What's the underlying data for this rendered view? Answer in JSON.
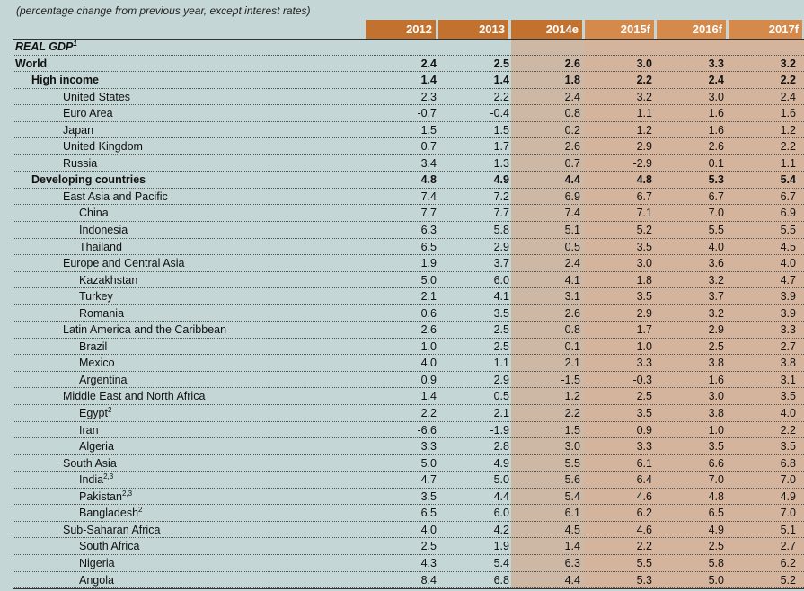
{
  "subtitle": "(percentage change from previous year, except interest rates)",
  "columns": [
    "2012",
    "2013",
    "2014e",
    "2015f",
    "2016f",
    "2017f"
  ],
  "colors": {
    "background": "#c5d6d6",
    "header_historical": "#c2712f",
    "header_forecast": "#d5894a",
    "shade_estimate": "#cdb8a6",
    "shade_forecast": "#d4b49c"
  },
  "section": {
    "label": "REAL GDP",
    "sup": "1"
  },
  "rows": [
    {
      "label": "World",
      "sup": "",
      "level": 0,
      "bold": true,
      "values": [
        "2.4",
        "2.5",
        "2.6",
        "3.0",
        "3.3",
        "3.2"
      ]
    },
    {
      "label": "High income",
      "sup": "",
      "level": 1,
      "bold": true,
      "values": [
        "1.4",
        "1.4",
        "1.8",
        "2.2",
        "2.4",
        "2.2"
      ]
    },
    {
      "label": "United States",
      "sup": "",
      "level": 2,
      "bold": false,
      "values": [
        "2.3",
        "2.2",
        "2.4",
        "3.2",
        "3.0",
        "2.4"
      ]
    },
    {
      "label": "Euro Area",
      "sup": "",
      "level": 2,
      "bold": false,
      "values": [
        "-0.7",
        "-0.4",
        "0.8",
        "1.1",
        "1.6",
        "1.6"
      ]
    },
    {
      "label": "Japan",
      "sup": "",
      "level": 2,
      "bold": false,
      "values": [
        "1.5",
        "1.5",
        "0.2",
        "1.2",
        "1.6",
        "1.2"
      ]
    },
    {
      "label": "United Kingdom",
      "sup": "",
      "level": 2,
      "bold": false,
      "values": [
        "0.7",
        "1.7",
        "2.6",
        "2.9",
        "2.6",
        "2.2"
      ]
    },
    {
      "label": "Russia",
      "sup": "",
      "level": 2,
      "bold": false,
      "values": [
        "3.4",
        "1.3",
        "0.7",
        "-2.9",
        "0.1",
        "1.1"
      ]
    },
    {
      "label": "Developing countries",
      "sup": "",
      "level": 1,
      "bold": true,
      "values": [
        "4.8",
        "4.9",
        "4.4",
        "4.8",
        "5.3",
        "5.4"
      ]
    },
    {
      "label": "East Asia and Pacific",
      "sup": "",
      "level": 2,
      "bold": false,
      "values": [
        "7.4",
        "7.2",
        "6.9",
        "6.7",
        "6.7",
        "6.7"
      ]
    },
    {
      "label": "China",
      "sup": "",
      "level": 3,
      "bold": false,
      "values": [
        "7.7",
        "7.7",
        "7.4",
        "7.1",
        "7.0",
        "6.9"
      ]
    },
    {
      "label": "Indonesia",
      "sup": "",
      "level": 3,
      "bold": false,
      "values": [
        "6.3",
        "5.8",
        "5.1",
        "5.2",
        "5.5",
        "5.5"
      ]
    },
    {
      "label": "Thailand",
      "sup": "",
      "level": 3,
      "bold": false,
      "values": [
        "6.5",
        "2.9",
        "0.5",
        "3.5",
        "4.0",
        "4.5"
      ]
    },
    {
      "label": "Europe and Central Asia",
      "sup": "",
      "level": 2,
      "bold": false,
      "values": [
        "1.9",
        "3.7",
        "2.4",
        "3.0",
        "3.6",
        "4.0"
      ]
    },
    {
      "label": "Kazakhstan",
      "sup": "",
      "level": 3,
      "bold": false,
      "values": [
        "5.0",
        "6.0",
        "4.1",
        "1.8",
        "3.2",
        "4.7"
      ]
    },
    {
      "label": "Turkey",
      "sup": "",
      "level": 3,
      "bold": false,
      "values": [
        "2.1",
        "4.1",
        "3.1",
        "3.5",
        "3.7",
        "3.9"
      ]
    },
    {
      "label": "Romania",
      "sup": "",
      "level": 3,
      "bold": false,
      "values": [
        "0.6",
        "3.5",
        "2.6",
        "2.9",
        "3.2",
        "3.9"
      ]
    },
    {
      "label": "Latin America and the Caribbean",
      "sup": "",
      "level": 2,
      "bold": false,
      "values": [
        "2.6",
        "2.5",
        "0.8",
        "1.7",
        "2.9",
        "3.3"
      ]
    },
    {
      "label": "Brazil",
      "sup": "",
      "level": 3,
      "bold": false,
      "values": [
        "1.0",
        "2.5",
        "0.1",
        "1.0",
        "2.5",
        "2.7"
      ]
    },
    {
      "label": "Mexico",
      "sup": "",
      "level": 3,
      "bold": false,
      "values": [
        "4.0",
        "1.1",
        "2.1",
        "3.3",
        "3.8",
        "3.8"
      ]
    },
    {
      "label": "Argentina",
      "sup": "",
      "level": 3,
      "bold": false,
      "values": [
        "0.9",
        "2.9",
        "-1.5",
        "-0.3",
        "1.6",
        "3.1"
      ]
    },
    {
      "label": "Middle East and North Africa",
      "sup": "",
      "level": 2,
      "bold": false,
      "values": [
        "1.4",
        "0.5",
        "1.2",
        "2.5",
        "3.0",
        "3.5"
      ]
    },
    {
      "label": "Egypt",
      "sup": "2",
      "level": 3,
      "bold": false,
      "values": [
        "2.2",
        "2.1",
        "2.2",
        "3.5",
        "3.8",
        "4.0"
      ]
    },
    {
      "label": "Iran",
      "sup": "",
      "level": 3,
      "bold": false,
      "values": [
        "-6.6",
        "-1.9",
        "1.5",
        "0.9",
        "1.0",
        "2.2"
      ]
    },
    {
      "label": "Algeria",
      "sup": "",
      "level": 3,
      "bold": false,
      "values": [
        "3.3",
        "2.8",
        "3.0",
        "3.3",
        "3.5",
        "3.5"
      ]
    },
    {
      "label": "South Asia",
      "sup": "",
      "level": 2,
      "bold": false,
      "values": [
        "5.0",
        "4.9",
        "5.5",
        "6.1",
        "6.6",
        "6.8"
      ]
    },
    {
      "label": "India",
      "sup": "2,3",
      "level": 3,
      "bold": false,
      "values": [
        "4.7",
        "5.0",
        "5.6",
        "6.4",
        "7.0",
        "7.0"
      ]
    },
    {
      "label": "Pakistan",
      "sup": "2,3",
      "level": 3,
      "bold": false,
      "values": [
        "3.5",
        "4.4",
        "5.4",
        "4.6",
        "4.8",
        "4.9"
      ]
    },
    {
      "label": "Bangladesh",
      "sup": "2",
      "level": 3,
      "bold": false,
      "values": [
        "6.5",
        "6.0",
        "6.1",
        "6.2",
        "6.5",
        "7.0"
      ]
    },
    {
      "label": "Sub-Saharan Africa",
      "sup": "",
      "level": 2,
      "bold": false,
      "values": [
        "4.0",
        "4.2",
        "4.5",
        "4.6",
        "4.9",
        "5.1"
      ]
    },
    {
      "label": "South Africa",
      "sup": "",
      "level": 3,
      "bold": false,
      "values": [
        "2.5",
        "1.9",
        "1.4",
        "2.2",
        "2.5",
        "2.7"
      ]
    },
    {
      "label": "Nigeria",
      "sup": "",
      "level": 3,
      "bold": false,
      "values": [
        "4.3",
        "5.4",
        "6.3",
        "5.5",
        "5.8",
        "6.2"
      ]
    },
    {
      "label": "Angola",
      "sup": "",
      "level": 3,
      "bold": false,
      "values": [
        "8.4",
        "6.8",
        "4.4",
        "5.3",
        "5.0",
        "5.2"
      ]
    }
  ]
}
